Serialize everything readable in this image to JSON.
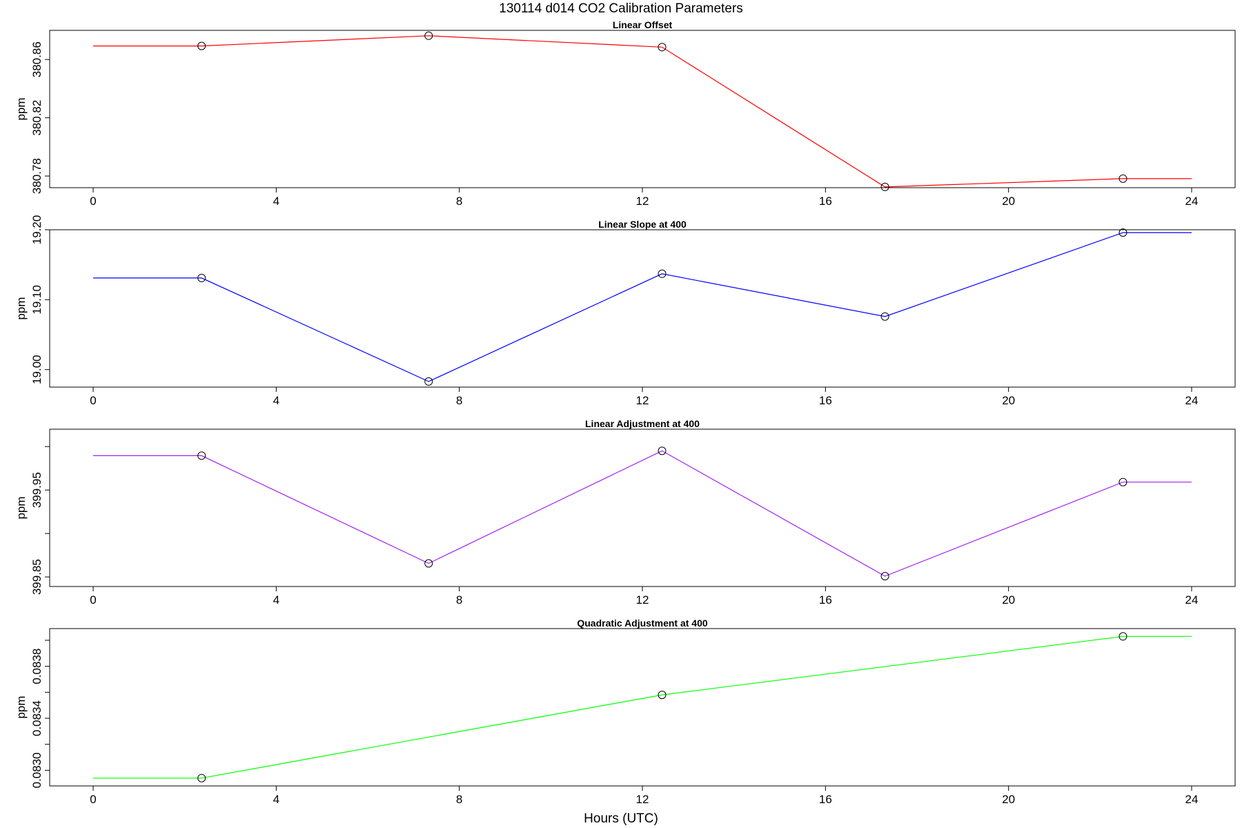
{
  "figure": {
    "title": "130114   d014   CO2 Calibration Parameters",
    "xlabel": "Hours (UTC)"
  },
  "chart_data": [
    {
      "type": "line",
      "title": "Linear Offset",
      "ylabel": "ppm",
      "color": "#ff0000",
      "xlim": [
        0,
        24
      ],
      "ylim": [
        380.772,
        380.88
      ],
      "xticks": [
        0,
        4,
        8,
        12,
        16,
        20,
        24
      ],
      "yticks": [
        380.78,
        380.82,
        380.86
      ],
      "ytick_labels": [
        "380.78",
        "380.82",
        "380.86"
      ],
      "x": [
        0,
        2.37,
        7.33,
        12.43,
        17.3,
        22.5,
        24
      ],
      "y": [
        380.8693,
        380.8693,
        380.8763,
        380.8685,
        380.7725,
        380.7782,
        380.7782
      ],
      "markers": [
        1,
        2,
        3,
        4,
        5
      ]
    },
    {
      "type": "line",
      "title": "Linear Slope at 400",
      "ylabel": "ppm",
      "color": "#0000ff",
      "xlim": [
        0,
        24
      ],
      "ylim": [
        18.975,
        19.2
      ],
      "xticks": [
        0,
        4,
        8,
        12,
        16,
        20,
        24
      ],
      "yticks": [
        19.0,
        19.1,
        19.2
      ],
      "ytick_labels": [
        "19.00",
        "19.10",
        "19.20"
      ],
      "x": [
        0,
        2.37,
        7.33,
        12.43,
        17.3,
        22.5,
        24
      ],
      "y": [
        19.131,
        19.131,
        18.983,
        19.137,
        19.076,
        19.196,
        19.196
      ],
      "markers": [
        1,
        2,
        3,
        4,
        5
      ]
    },
    {
      "type": "line",
      "title": "Linear Adjustment at 400",
      "ylabel": "ppm",
      "color": "#a020f0",
      "xlim": [
        0,
        24
      ],
      "ylim": [
        399.839,
        400.02
      ],
      "xticks": [
        0,
        4,
        8,
        12,
        16,
        20,
        24
      ],
      "yticks": [
        399.85,
        399.9,
        399.95,
        400.0
      ],
      "ytick_labels": [
        "399.85",
        "",
        "399.95",
        ""
      ],
      "x": [
        0,
        2.37,
        7.33,
        12.43,
        17.3,
        22.5,
        24
      ],
      "y": [
        399.9895,
        399.9895,
        399.8656,
        399.9951,
        399.8509,
        399.9591,
        399.9591
      ],
      "markers": [
        1,
        2,
        3,
        4,
        5
      ]
    },
    {
      "type": "line",
      "title": "Quadratic Adjustment at 400",
      "ylabel": "ppm",
      "color": "#00ff00",
      "xlim": [
        0,
        24
      ],
      "ylim": [
        0.08288,
        0.08409
      ],
      "xticks": [
        0,
        4,
        8,
        12,
        16,
        20,
        24
      ],
      "yticks": [
        0.083,
        0.0832,
        0.0834,
        0.0836,
        0.0838,
        0.084
      ],
      "ytick_labels": [
        "0.0830",
        "",
        "0.0834",
        "",
        "0.0838",
        ""
      ],
      "x": [
        0,
        2.37,
        12.43,
        22.5,
        24
      ],
      "y": [
        0.08294,
        0.08294,
        0.08358,
        0.08403,
        0.08403
      ],
      "markers": [
        1,
        2,
        3
      ]
    }
  ]
}
